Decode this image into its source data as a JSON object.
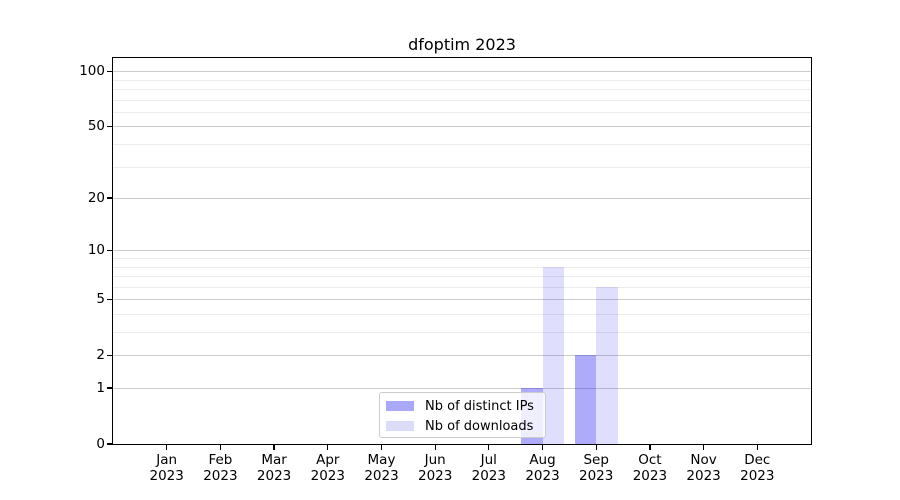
{
  "title": "dfoptim 2023",
  "chart_data": {
    "type": "bar",
    "title": "dfoptim 2023",
    "categories": [
      "Jan 2023",
      "Feb 2023",
      "Mar 2023",
      "Apr 2023",
      "May 2023",
      "Jun 2023",
      "Jul 2023",
      "Aug 2023",
      "Sep 2023",
      "Oct 2023",
      "Nov 2023",
      "Dec 2023"
    ],
    "series": [
      {
        "name": "Nb of distinct IPs",
        "values": [
          0,
          0,
          0,
          0,
          0,
          0,
          0,
          1,
          2,
          0,
          0,
          0
        ],
        "fill_color": "rgba(15,10,240,0.34)",
        "legend_color": "#aaa8f8"
      },
      {
        "name": "Nb of downloads",
        "values": [
          0,
          0,
          0,
          0,
          0,
          0,
          0,
          8,
          6,
          0,
          0,
          0
        ],
        "fill_color": "rgba(15,10,240,0.135)",
        "legend_color": "#dcdbfa"
      }
    ],
    "xlabel": "",
    "ylabel": "",
    "y_axis": {
      "scale": "log1p",
      "ticks": [
        0,
        1,
        2,
        5,
        10,
        20,
        50,
        100
      ],
      "minor_ticks": [
        3,
        4,
        6,
        7,
        8,
        9,
        30,
        40,
        60,
        70,
        80,
        90
      ],
      "ylim": [
        0,
        118
      ]
    },
    "grid": "horizontal, major and minor, on",
    "legend_position": "lower center inside axes",
    "bar_group_width": 0.8
  },
  "colors": {
    "background": "#ffffff",
    "grid_major": "#cccccc",
    "grid_minor": "#ececec",
    "spine": "#000000",
    "tick": "#000000",
    "text": "#000000",
    "legend_border": "#cccccc"
  }
}
